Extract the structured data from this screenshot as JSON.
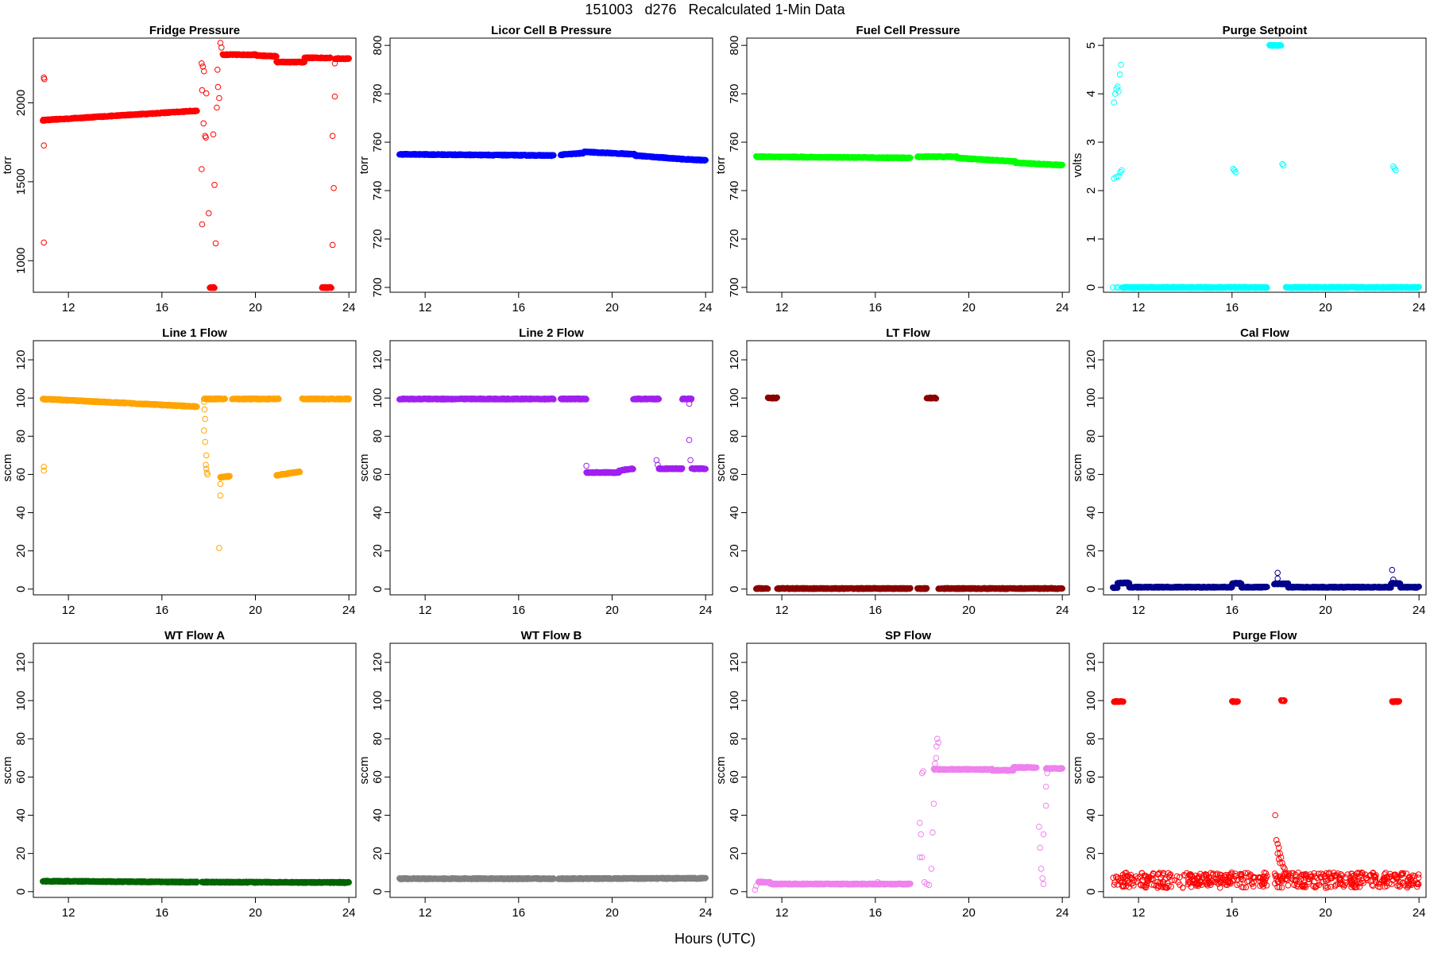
{
  "figure": {
    "title": "151003   d276   Recalculated 1-Min Data",
    "xlabel": "Hours (UTC)"
  },
  "chart_data": [
    {
      "type": "scatter",
      "title": "Fridge Pressure",
      "ylabel": "torr",
      "color": "#ff0000",
      "xlim": [
        10.5,
        24.3
      ],
      "ylim": [
        800,
        2410
      ],
      "xticks": [
        12,
        16,
        20,
        24
      ],
      "yticks": [
        1000,
        1500,
        2000
      ],
      "segments": [
        {
          "x0": 10.9,
          "x1": 17.5,
          "y0": 1890,
          "y1": 1950
        },
        {
          "x0": 18.6,
          "x1": 20.0,
          "y0": 2305,
          "y1": 2305
        },
        {
          "x0": 20.0,
          "x1": 20.9,
          "y0": 2300,
          "y1": 2295
        },
        {
          "x0": 20.9,
          "x1": 22.1,
          "y0": 2258,
          "y1": 2258
        },
        {
          "x0": 22.1,
          "x1": 23.2,
          "y0": 2285,
          "y1": 2285
        },
        {
          "x0": 23.4,
          "x1": 24.0,
          "y0": 2280,
          "y1": 2280
        },
        {
          "x0": 18.05,
          "x1": 18.25,
          "y0": 830,
          "y1": 830
        },
        {
          "x0": 22.85,
          "x1": 23.25,
          "y0": 830,
          "y1": 830
        }
      ],
      "points": [
        [
          10.95,
          2160
        ],
        [
          10.97,
          2150
        ],
        [
          10.95,
          1730
        ],
        [
          10.95,
          1115
        ],
        [
          17.7,
          2250
        ],
        [
          17.75,
          2230
        ],
        [
          17.8,
          2200
        ],
        [
          17.72,
          2080
        ],
        [
          17.9,
          2060
        ],
        [
          17.78,
          1870
        ],
        [
          17.85,
          1790
        ],
        [
          17.88,
          1780
        ],
        [
          17.7,
          1580
        ],
        [
          17.72,
          1230
        ],
        [
          18.0,
          1300
        ],
        [
          18.2,
          1800
        ],
        [
          18.25,
          1480
        ],
        [
          18.3,
          1110
        ],
        [
          18.4,
          2100
        ],
        [
          18.45,
          2030
        ],
        [
          18.35,
          1970
        ],
        [
          18.5,
          2380
        ],
        [
          18.55,
          2350
        ],
        [
          18.38,
          2210
        ],
        [
          23.4,
          2250
        ],
        [
          23.4,
          2040
        ],
        [
          23.3,
          1790
        ],
        [
          23.35,
          1460
        ],
        [
          23.3,
          1100
        ]
      ]
    },
    {
      "type": "scatter",
      "title": "Licor Cell B Pressure",
      "ylabel": "torr",
      "color": "#0000ff",
      "xlim": [
        10.5,
        24.3
      ],
      "ylim": [
        698,
        803
      ],
      "xticks": [
        12,
        16,
        20,
        24
      ],
      "yticks": [
        700,
        720,
        740,
        760,
        780,
        800
      ],
      "segments": [
        {
          "x0": 10.9,
          "x1": 17.5,
          "y0": 755,
          "y1": 754.5
        },
        {
          "x0": 17.8,
          "x1": 18.8,
          "y0": 754.8,
          "y1": 755.5
        },
        {
          "x0": 18.8,
          "x1": 21.0,
          "y0": 756,
          "y1": 755
        },
        {
          "x0": 21.0,
          "x1": 23.0,
          "y0": 754.5,
          "y1": 753
        },
        {
          "x0": 23.0,
          "x1": 24.0,
          "y0": 753,
          "y1": 752.5
        }
      ],
      "points": []
    },
    {
      "type": "scatter",
      "title": "Fuel Cell Pressure",
      "ylabel": "torr",
      "color": "#00ff00",
      "xlim": [
        10.5,
        24.3
      ],
      "ylim": [
        698,
        803
      ],
      "xticks": [
        12,
        16,
        20,
        24
      ],
      "yticks": [
        700,
        720,
        740,
        760,
        780,
        800
      ],
      "segments": [
        {
          "x0": 10.9,
          "x1": 17.5,
          "y0": 754,
          "y1": 753.5
        },
        {
          "x0": 17.8,
          "x1": 19.5,
          "y0": 754,
          "y1": 754
        },
        {
          "x0": 19.5,
          "x1": 22.0,
          "y0": 753.5,
          "y1": 752
        },
        {
          "x0": 22.0,
          "x1": 24.0,
          "y0": 751.5,
          "y1": 750.5
        }
      ],
      "points": []
    },
    {
      "type": "scatter",
      "title": "Purge Setpoint",
      "ylabel": "volts",
      "color": "#00ffff",
      "xlim": [
        10.5,
        24.3
      ],
      "ylim": [
        -0.1,
        5.15
      ],
      "xticks": [
        12,
        16,
        20,
        24
      ],
      "yticks": [
        0,
        1,
        2,
        3,
        4,
        5
      ],
      "segments": [
        {
          "x0": 11.3,
          "x1": 17.5,
          "y0": 0,
          "y1": 0
        },
        {
          "x0": 18.3,
          "x1": 24.0,
          "y0": 0,
          "y1": 0
        },
        {
          "x0": 17.6,
          "x1": 18.1,
          "y0": 5.0,
          "y1": 5.0
        }
      ],
      "points": [
        [
          10.9,
          0
        ],
        [
          11.05,
          0
        ],
        [
          11.15,
          0
        ],
        [
          10.95,
          3.82
        ],
        [
          11.0,
          4.0
        ],
        [
          11.05,
          4.1
        ],
        [
          11.1,
          4.15
        ],
        [
          11.15,
          4.05
        ],
        [
          11.2,
          4.4
        ],
        [
          11.25,
          4.6
        ],
        [
          10.95,
          2.25
        ],
        [
          11.05,
          2.28
        ],
        [
          11.15,
          2.3
        ],
        [
          11.22,
          2.38
        ],
        [
          11.28,
          2.42
        ],
        [
          16.05,
          2.45
        ],
        [
          16.1,
          2.42
        ],
        [
          16.15,
          2.38
        ],
        [
          18.15,
          2.55
        ],
        [
          18.2,
          2.52
        ],
        [
          22.9,
          2.5
        ],
        [
          22.95,
          2.46
        ],
        [
          23.0,
          2.42
        ]
      ]
    },
    {
      "type": "scatter",
      "title": "Line 1 Flow",
      "ylabel": "sccm",
      "color": "#ffa500",
      "xlim": [
        10.5,
        24.3
      ],
      "ylim": [
        -3,
        130
      ],
      "xticks": [
        12,
        16,
        20,
        24
      ],
      "yticks": [
        0,
        20,
        40,
        60,
        80,
        100,
        120
      ],
      "segments": [
        {
          "x0": 10.9,
          "x1": 17.5,
          "y0": 99.5,
          "y1": 95.5
        },
        {
          "x0": 17.8,
          "x1": 18.7,
          "y0": 99.5,
          "y1": 99.5
        },
        {
          "x0": 19.0,
          "x1": 21.0,
          "y0": 99.5,
          "y1": 99.5
        },
        {
          "x0": 22.0,
          "x1": 24.0,
          "y0": 99.5,
          "y1": 99.5
        },
        {
          "x0": 18.5,
          "x1": 18.9,
          "y0": 58.5,
          "y1": 59
        },
        {
          "x0": 20.9,
          "x1": 21.9,
          "y0": 59.5,
          "y1": 61.5
        }
      ],
      "points": [
        [
          10.95,
          64
        ],
        [
          10.95,
          62
        ],
        [
          17.8,
          98
        ],
        [
          17.82,
          94
        ],
        [
          17.85,
          89
        ],
        [
          17.8,
          83
        ],
        [
          17.85,
          77
        ],
        [
          17.9,
          70
        ],
        [
          17.88,
          65
        ],
        [
          17.9,
          63
        ],
        [
          17.92,
          61
        ],
        [
          17.95,
          60
        ],
        [
          18.5,
          55
        ],
        [
          18.5,
          49
        ],
        [
          18.45,
          21.5
        ]
      ]
    },
    {
      "type": "scatter",
      "title": "Line 2 Flow",
      "ylabel": "sccm",
      "color": "#a020f0",
      "xlim": [
        10.5,
        24.3
      ],
      "ylim": [
        -3,
        130
      ],
      "xticks": [
        12,
        16,
        20,
        24
      ],
      "yticks": [
        0,
        20,
        40,
        60,
        80,
        100,
        120
      ],
      "segments": [
        {
          "x0": 10.9,
          "x1": 17.5,
          "y0": 99.5,
          "y1": 99.5
        },
        {
          "x0": 17.8,
          "x1": 18.9,
          "y0": 99.5,
          "y1": 99.5
        },
        {
          "x0": 20.9,
          "x1": 22.0,
          "y0": 99.5,
          "y1": 99.5
        },
        {
          "x0": 23.0,
          "x1": 23.4,
          "y0": 99.5,
          "y1": 99.5
        },
        {
          "x0": 18.9,
          "x1": 20.3,
          "y0": 61,
          "y1": 61
        },
        {
          "x0": 20.3,
          "x1": 20.9,
          "y0": 62,
          "y1": 63
        },
        {
          "x0": 22.0,
          "x1": 23.0,
          "y0": 63,
          "y1": 63
        },
        {
          "x0": 23.4,
          "x1": 24.0,
          "y0": 63,
          "y1": 63
        }
      ],
      "points": [
        [
          18.9,
          64.5
        ],
        [
          21.9,
          67.5
        ],
        [
          21.95,
          65
        ],
        [
          23.3,
          97
        ],
        [
          23.3,
          78
        ],
        [
          23.35,
          67.5
        ]
      ]
    },
    {
      "type": "scatter",
      "title": "LT Flow",
      "ylabel": "sccm",
      "color": "#8b0000",
      "xlim": [
        10.5,
        24.3
      ],
      "ylim": [
        -3,
        130
      ],
      "xticks": [
        12,
        16,
        20,
        24
      ],
      "yticks": [
        0,
        20,
        40,
        60,
        80,
        100,
        120
      ],
      "segments": [
        {
          "x0": 10.9,
          "x1": 11.4,
          "y0": 0.3,
          "y1": 0.3
        },
        {
          "x0": 11.8,
          "x1": 17.5,
          "y0": 0.3,
          "y1": 0.3
        },
        {
          "x0": 17.8,
          "x1": 18.2,
          "y0": 0.3,
          "y1": 0.3
        },
        {
          "x0": 18.7,
          "x1": 24.0,
          "y0": 0.3,
          "y1": 0.3
        },
        {
          "x0": 11.4,
          "x1": 11.8,
          "y0": 100,
          "y1": 100
        },
        {
          "x0": 18.2,
          "x1": 18.6,
          "y0": 100,
          "y1": 100
        }
      ],
      "points": []
    },
    {
      "type": "scatter",
      "title": "Cal Flow",
      "ylabel": "sccm",
      "color": "#00008b",
      "xlim": [
        10.5,
        24.3
      ],
      "ylim": [
        -3,
        130
      ],
      "xticks": [
        12,
        16,
        20,
        24
      ],
      "yticks": [
        0,
        20,
        40,
        60,
        80,
        100,
        120
      ],
      "segments": [
        {
          "x0": 10.9,
          "x1": 11.1,
          "y0": 0.8,
          "y1": 0.8
        },
        {
          "x0": 11.1,
          "x1": 11.6,
          "y0": 3.2,
          "y1": 3.2
        },
        {
          "x0": 11.6,
          "x1": 16.0,
          "y0": 1.0,
          "y1": 1.0
        },
        {
          "x0": 16.0,
          "x1": 16.4,
          "y0": 3.0,
          "y1": 3.0
        },
        {
          "x0": 16.4,
          "x1": 17.5,
          "y0": 1.0,
          "y1": 1.0
        },
        {
          "x0": 17.8,
          "x1": 18.4,
          "y0": 2.8,
          "y1": 2.8
        },
        {
          "x0": 18.4,
          "x1": 22.8,
          "y0": 1.0,
          "y1": 1.0
        },
        {
          "x0": 22.8,
          "x1": 23.2,
          "y0": 3.0,
          "y1": 3.0
        },
        {
          "x0": 23.2,
          "x1": 24.0,
          "y0": 1.0,
          "y1": 1.0
        }
      ],
      "points": [
        [
          17.95,
          8.5
        ],
        [
          17.95,
          5.5
        ],
        [
          22.85,
          10
        ],
        [
          22.9,
          5
        ]
      ]
    },
    {
      "type": "scatter",
      "title": "WT Flow A",
      "ylabel": "sccm",
      "color": "#006400",
      "xlim": [
        10.5,
        24.3
      ],
      "ylim": [
        -3,
        130
      ],
      "xticks": [
        12,
        16,
        20,
        24
      ],
      "yticks": [
        0,
        20,
        40,
        60,
        80,
        100,
        120
      ],
      "segments": [
        {
          "x0": 10.9,
          "x1": 17.5,
          "y0": 5.5,
          "y1": 5.0
        },
        {
          "x0": 17.7,
          "x1": 24.0,
          "y0": 5.0,
          "y1": 4.8
        }
      ],
      "points": []
    },
    {
      "type": "scatter",
      "title": "WT Flow B",
      "ylabel": "sccm",
      "color": "#808080",
      "xlim": [
        10.5,
        24.3
      ],
      "ylim": [
        -3,
        130
      ],
      "xticks": [
        12,
        16,
        20,
        24
      ],
      "yticks": [
        0,
        20,
        40,
        60,
        80,
        100,
        120
      ],
      "segments": [
        {
          "x0": 10.9,
          "x1": 17.5,
          "y0": 6.8,
          "y1": 6.8
        },
        {
          "x0": 17.7,
          "x1": 24.0,
          "y0": 6.8,
          "y1": 7.0
        }
      ],
      "points": []
    },
    {
      "type": "scatter",
      "title": "SP Flow",
      "ylabel": "sccm",
      "color": "#ee82ee",
      "xlim": [
        10.5,
        24.3
      ],
      "ylim": [
        -3,
        130
      ],
      "xticks": [
        12,
        16,
        20,
        24
      ],
      "yticks": [
        0,
        20,
        40,
        60,
        80,
        100,
        120
      ],
      "segments": [
        {
          "x0": 11.0,
          "x1": 11.5,
          "y0": 5.0,
          "y1": 5.0
        },
        {
          "x0": 11.5,
          "x1": 16.2,
          "y0": 4.0,
          "y1": 4.0
        },
        {
          "x0": 16.2,
          "x1": 17.5,
          "y0": 4.0,
          "y1": 4.0
        },
        {
          "x0": 18.5,
          "x1": 21.0,
          "y0": 64,
          "y1": 64
        },
        {
          "x0": 21.0,
          "x1": 21.9,
          "y0": 63.5,
          "y1": 63.5
        },
        {
          "x0": 21.9,
          "x1": 22.9,
          "y0": 65,
          "y1": 65
        },
        {
          "x0": 23.3,
          "x1": 24.0,
          "y0": 64.5,
          "y1": 64.5
        }
      ],
      "points": [
        [
          10.85,
          1
        ],
        [
          10.9,
          3
        ],
        [
          16.1,
          5
        ],
        [
          17.9,
          36
        ],
        [
          17.95,
          30
        ],
        [
          17.9,
          18
        ],
        [
          18.0,
          18
        ],
        [
          18.0,
          62
        ],
        [
          18.05,
          63
        ],
        [
          18.1,
          5
        ],
        [
          18.2,
          4
        ],
        [
          18.3,
          3.5
        ],
        [
          18.4,
          12
        ],
        [
          18.45,
          31
        ],
        [
          18.5,
          46
        ],
        [
          18.55,
          67
        ],
        [
          18.6,
          70
        ],
        [
          18.62,
          76
        ],
        [
          18.65,
          80
        ],
        [
          18.7,
          78
        ],
        [
          23.0,
          34
        ],
        [
          23.05,
          23
        ],
        [
          23.1,
          12
        ],
        [
          23.15,
          7
        ],
        [
          23.2,
          4
        ],
        [
          23.2,
          30
        ],
        [
          23.3,
          45
        ],
        [
          23.3,
          55
        ],
        [
          23.35,
          62
        ]
      ]
    },
    {
      "type": "scatter",
      "title": "Purge Flow",
      "ylabel": "sccm",
      "color": "#ff0000",
      "xlim": [
        10.5,
        24.3
      ],
      "ylim": [
        -3,
        130
      ],
      "xticks": [
        12,
        16,
        20,
        24
      ],
      "yticks": [
        0,
        20,
        40,
        60,
        80,
        100,
        120
      ],
      "segments": [
        {
          "x0": 10.95,
          "x1": 11.35,
          "y0": 99.5,
          "y1": 99.5
        },
        {
          "x0": 16.0,
          "x1": 16.25,
          "y0": 99.5,
          "y1": 99.5
        },
        {
          "x0": 18.1,
          "x1": 18.25,
          "y0": 100,
          "y1": 100
        },
        {
          "x0": 22.85,
          "x1": 23.15,
          "y0": 99.5,
          "y1": 99.5
        }
      ],
      "scatter_band": {
        "x0": 10.9,
        "x1": 24.0,
        "y0": 2,
        "y1": 10,
        "n": 520
      },
      "points": [
        [
          17.85,
          40
        ],
        [
          17.9,
          27
        ],
        [
          17.95,
          25
        ],
        [
          18.0,
          23
        ],
        [
          18.05,
          20
        ],
        [
          18.1,
          18
        ],
        [
          18.15,
          15
        ],
        [
          18.2,
          13
        ],
        [
          18.25,
          12
        ],
        [
          18.3,
          10
        ],
        [
          18.35,
          9
        ],
        [
          18.4,
          8
        ],
        [
          17.95,
          20
        ],
        [
          18.0,
          17
        ],
        [
          18.05,
          15
        ]
      ]
    }
  ]
}
